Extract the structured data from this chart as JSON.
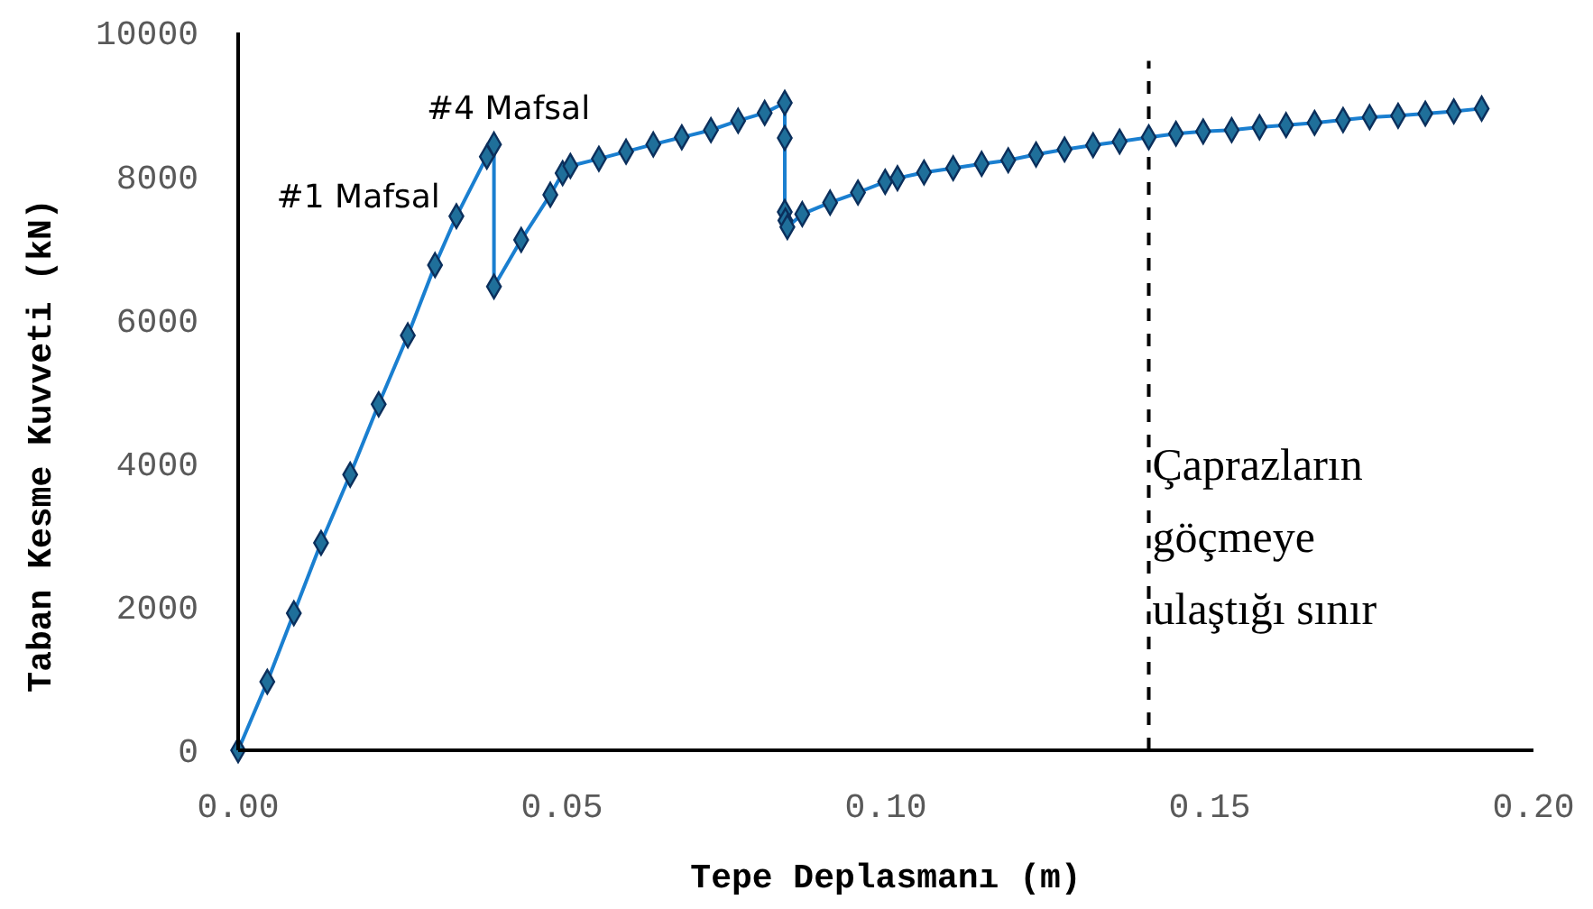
{
  "chart_data": {
    "type": "line",
    "xlabel": "Tepe Deplasmanı (m)",
    "ylabel": "Taban Kesme Kuvveti (kN)",
    "x": [
      0,
      0.0045,
      0.0086,
      0.0128,
      0.0173,
      0.0217,
      0.0262,
      0.0304,
      0.0337,
      0.0384,
      0.0395,
      0.0395,
      0.0437,
      0.0482,
      0.0501,
      0.0513,
      0.0557,
      0.0599,
      0.0641,
      0.0685,
      0.073,
      0.0772,
      0.0813,
      0.0844,
      0.0844,
      0.0844,
      0.0845,
      0.0848,
      0.0871,
      0.0914,
      0.0957,
      0.0999,
      0.1018,
      0.1059,
      0.1104,
      0.1148,
      0.1189,
      0.1232,
      0.1276,
      0.132,
      0.1361,
      0.1406,
      0.1448,
      0.149,
      0.1534,
      0.1577,
      0.1618,
      0.1662,
      0.1706,
      0.1747,
      0.1791,
      0.1833,
      0.1877,
      0.192
    ],
    "series": [
      {
        "color": "#1f6f9a",
        "values": [
          0,
          955,
          1910,
          2890,
          3840,
          4820,
          5780,
          6760,
          7440,
          8270,
          8440,
          6460,
          7110,
          7740,
          8040,
          8140,
          8240,
          8340,
          8440,
          8540,
          8640,
          8770,
          8880,
          9020,
          8530,
          7500,
          7380,
          7290,
          7470,
          7630,
          7770,
          7920,
          7970,
          8050,
          8110,
          8170,
          8220,
          8300,
          8370,
          8430,
          8480,
          8540,
          8590,
          8620,
          8640,
          8680,
          8710,
          8740,
          8780,
          8820,
          8840,
          8870,
          8900,
          8940
        ]
      }
    ],
    "xlim": [
      0,
      0.2
    ],
    "xticks": [
      {
        "value": 0,
        "label": "0.00"
      },
      {
        "value": 0.05,
        "label": "0.05"
      },
      {
        "value": 0.1,
        "label": "0.10"
      },
      {
        "value": 0.15,
        "label": "0.15"
      },
      {
        "value": 0.2,
        "label": "0.20"
      }
    ],
    "ylim": [
      0,
      10000
    ],
    "yticks": [
      0,
      2000,
      4000,
      6000,
      8000,
      10000
    ],
    "marker": "diamond",
    "line_style": "solid",
    "ref_lines": [
      {
        "axis": "x",
        "value": 0.1406,
        "label": "Çaprazların\ngöçmeye\nulaştığı sınır",
        "color": "#000000",
        "line_style": "dashed"
      }
    ],
    "annotations": [
      {
        "text": "#1 Mafsal",
        "x": 0.0384,
        "y": 8270
      },
      {
        "text": "#4 Mafsal",
        "x": 0.0395,
        "y": 8440
      }
    ]
  }
}
